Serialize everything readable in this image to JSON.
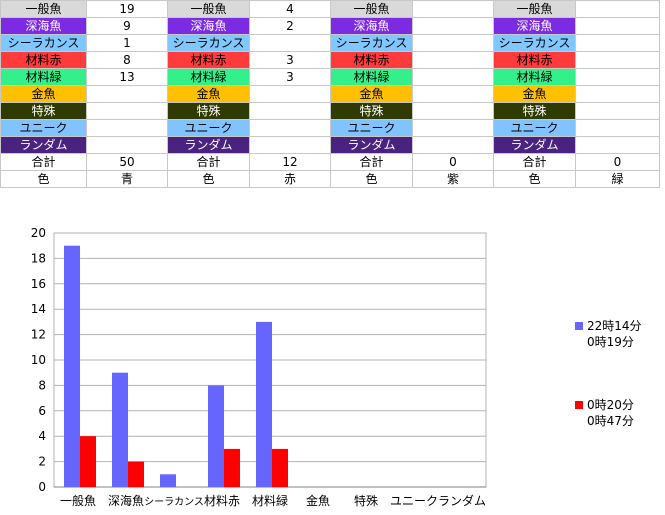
{
  "table": {
    "row_labels": [
      "一般魚",
      "深海魚",
      "シーラカンス",
      "材料赤",
      "材料緑",
      "金魚",
      "特殊",
      "ユニーク",
      "ランダム"
    ],
    "row_colors": [
      {
        "bg": "#d9d9d9",
        "fg": "#000000"
      },
      {
        "bg": "#7b2be2",
        "fg": "#ffffff"
      },
      {
        "bg": "#7fc7ff",
        "fg": "#000000"
      },
      {
        "bg": "#ff3b3b",
        "fg": "#000000"
      },
      {
        "bg": "#33f08a",
        "fg": "#000000"
      },
      {
        "bg": "#ffc000",
        "fg": "#000000"
      },
      {
        "bg": "#2f3b00",
        "fg": "#ffffff"
      },
      {
        "bg": "#80c3ff",
        "fg": "#000000"
      },
      {
        "bg": "#4a2280",
        "fg": "#ffffff"
      }
    ],
    "blocks": [
      {
        "values": [
          "19",
          "9",
          "1",
          "8",
          "13",
          "",
          "",
          "",
          ""
        ],
        "total": "50",
        "color": "青"
      },
      {
        "values": [
          "4",
          "2",
          "",
          "3",
          "3",
          "",
          "",
          "",
          ""
        ],
        "total": "12",
        "color": "赤"
      },
      {
        "values": [
          "",
          "",
          "",
          "",
          "",
          "",
          "",
          "",
          ""
        ],
        "total": "0",
        "color": "紫"
      },
      {
        "values": [
          "",
          "",
          "",
          "",
          "",
          "",
          "",
          "",
          ""
        ],
        "total": "0",
        "color": "緑"
      }
    ],
    "total_label": "合計",
    "color_label": "色"
  },
  "chart_data": {
    "type": "bar",
    "categories": [
      "一般魚",
      "深海魚",
      "シーラカンス",
      "材料赤",
      "材料緑",
      "金魚",
      "特殊",
      "ユニーク",
      "ランダム"
    ],
    "series": [
      {
        "name": "22時14分\n0時19分",
        "color": "#6666ff",
        "values": [
          19,
          9,
          1,
          8,
          13,
          0,
          0,
          0,
          0
        ]
      },
      {
        "name": "0時20分\n0時47分",
        "color": "#ff0000",
        "values": [
          4,
          2,
          0,
          3,
          3,
          0,
          0,
          0,
          0
        ]
      }
    ],
    "ylim": [
      0,
      20
    ],
    "yticks": [
      0,
      2,
      4,
      6,
      8,
      10,
      12,
      14,
      16,
      18,
      20
    ],
    "grid": true,
    "legend": "right"
  },
  "legend": {
    "s1_line1": "22時14分",
    "s1_line2": "0時19分",
    "s2_line1": "0時20分",
    "s2_line2": "0時47分"
  }
}
